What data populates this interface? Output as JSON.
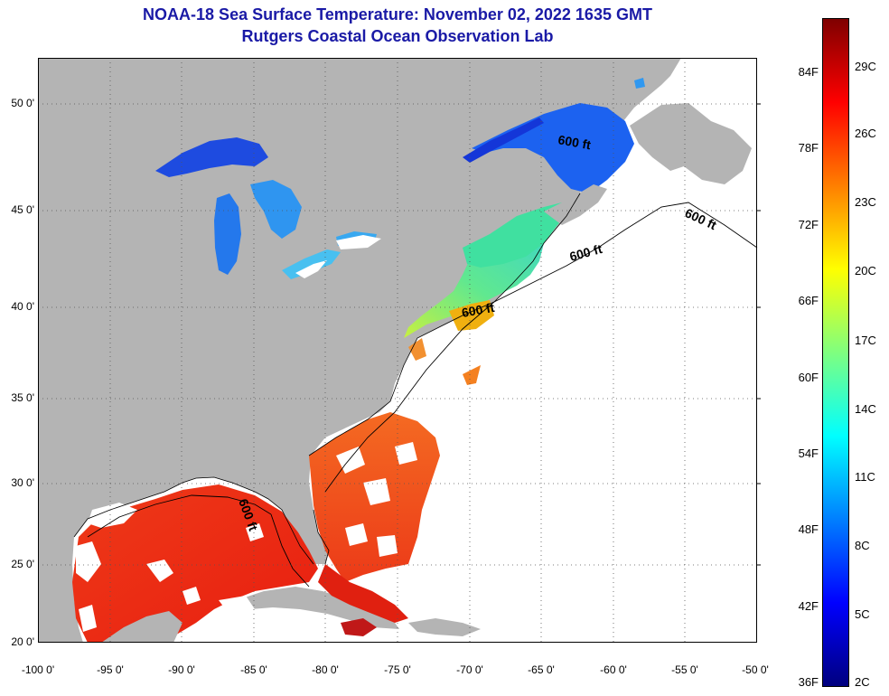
{
  "title": {
    "line1": "NOAA-18 Sea Surface Temperature:  November 02, 2022 1635 GMT",
    "line2": "Rutgers Coastal Ocean Observation Lab"
  },
  "map": {
    "lon_range": [
      -100,
      -50
    ],
    "lat_range": [
      20,
      52
    ],
    "lat_ticks": [
      "50 0'",
      "45 0'",
      "40 0'",
      "35 0'",
      "30 0'",
      "25 0'",
      "20 0'"
    ],
    "lon_ticks": [
      "-100 0'",
      "-95 0'",
      "-90 0'",
      "-85 0'",
      "-80 0'",
      "-75 0'",
      "-70 0'",
      "-65 0'",
      "-60 0'",
      "-55 0'",
      "-50 0'"
    ],
    "contour_labels": [
      "600 ft",
      "600 ft",
      "600 ft",
      "600 ft",
      "600 ft"
    ],
    "land_color": "#b4b4b4",
    "cloud_color": "#ffffff"
  },
  "colorbar": {
    "fahrenheit_labels": [
      "84F",
      "78F",
      "72F",
      "66F",
      "60F",
      "54F",
      "48F",
      "42F",
      "36F"
    ],
    "celsius_labels": [
      "29C",
      "26C",
      "23C",
      "20C",
      "17C",
      "14C",
      "11C",
      "8C",
      "5C",
      "2C"
    ],
    "colors": [
      "#00007f",
      "#0000ff",
      "#007fff",
      "#00ffff",
      "#7fff7f",
      "#ffff00",
      "#ff7f00",
      "#ff0000",
      "#7f0000"
    ]
  }
}
